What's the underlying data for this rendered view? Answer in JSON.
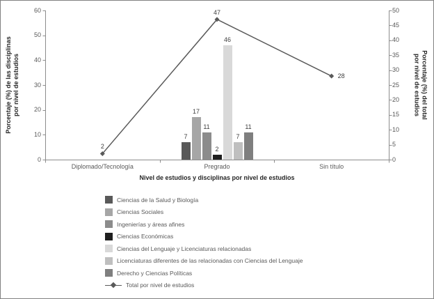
{
  "chart_data": {
    "type": "bar",
    "title": "",
    "categories": [
      "Diplomado/Tecnología",
      "Pregrado",
      "Sin título"
    ],
    "bar_series": [
      {
        "name": "Ciencias de la Salud y Biología",
        "color": "#595959",
        "values": [
          null,
          7,
          null
        ]
      },
      {
        "name": "Ciencias Sociales",
        "color": "#a6a6a6",
        "values": [
          null,
          17,
          null
        ]
      },
      {
        "name": "Ingenierías y áreas afines",
        "color": "#8c8c8c",
        "values": [
          null,
          11,
          null
        ]
      },
      {
        "name": "Ciencias Económicas",
        "color": "#1f1f1f",
        "values": [
          null,
          2,
          null
        ]
      },
      {
        "name": "Ciencias del Lenguaje y Licenciaturas relacionadas",
        "color": "#d9d9d9",
        "values": [
          null,
          46,
          null
        ]
      },
      {
        "name": "Licenciaturas diferentes de las relacionadas con Ciencias del Lenguaje",
        "color": "#bfbfbf",
        "values": [
          null,
          7,
          null
        ]
      },
      {
        "name": "Derecho y Ciencias Políticas",
        "color": "#7f7f7f",
        "values": [
          null,
          11,
          null
        ]
      }
    ],
    "line_series": {
      "name": "Total por nivel de estudios",
      "color": "#595959",
      "axis": "right",
      "values": [
        2,
        47,
        28
      ]
    },
    "left_axis": {
      "title": "Porcentaje (%)  de las disciplinas\npor nivel de estudios",
      "min": 0,
      "max": 60,
      "ticks": [
        0,
        10,
        20,
        30,
        40,
        50,
        60
      ]
    },
    "right_axis": {
      "title": "Porcentaje (%) del total\npor nivel de estudios",
      "min": 0,
      "max": 50,
      "ticks": [
        0,
        5,
        10,
        15,
        20,
        25,
        30,
        35,
        40,
        45,
        50
      ]
    },
    "x_axis": {
      "title": "Nivel de estudios y disciplinas por nivel de estudios"
    },
    "data_labels": true,
    "grid": false,
    "legend_position": "bottom",
    "axis_color": "#8c8c8c"
  }
}
